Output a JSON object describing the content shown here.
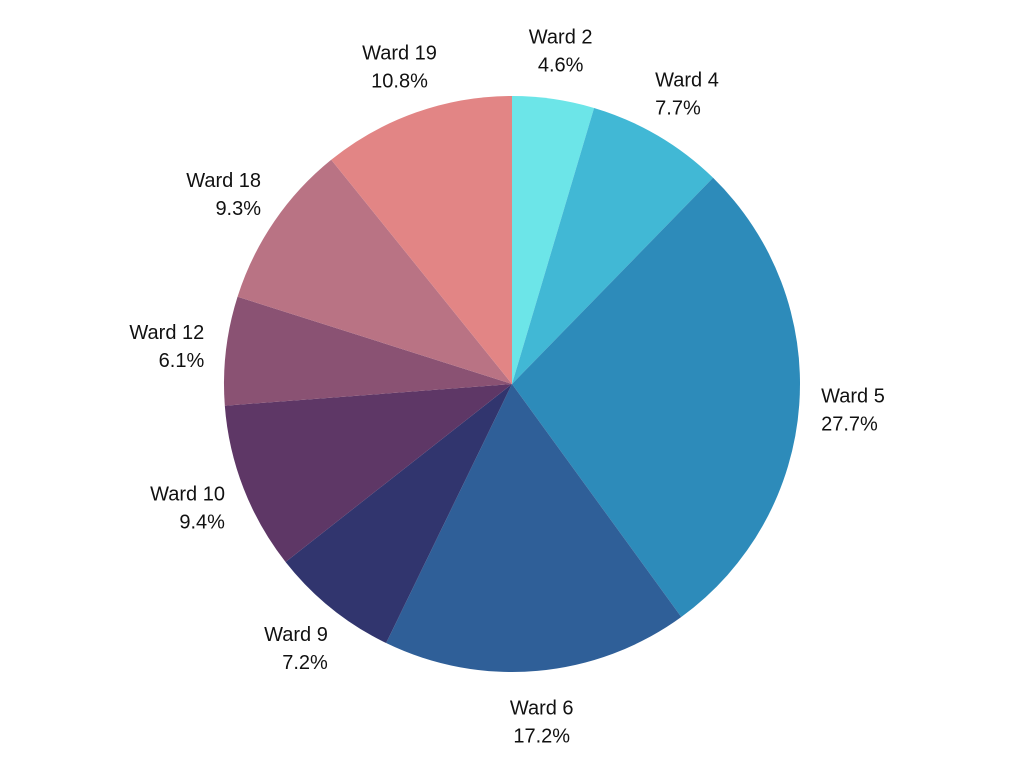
{
  "chart_data": {
    "type": "pie",
    "title": "",
    "legend": "none",
    "start_angle_deg": 0,
    "direction": "clockwise",
    "slices": [
      {
        "label": "Ward 2",
        "value": 4.6,
        "value_label": "4.6%",
        "color": "#6CE5E8"
      },
      {
        "label": "Ward 4",
        "value": 7.7,
        "value_label": "7.7%",
        "color": "#41B8D5"
      },
      {
        "label": "Ward 5",
        "value": 27.7,
        "value_label": "27.7%",
        "color": "#2D8BBA"
      },
      {
        "label": "Ward 6",
        "value": 17.2,
        "value_label": "17.2%",
        "color": "#2F5F98"
      },
      {
        "label": "Ward 9",
        "value": 7.2,
        "value_label": "7.2%",
        "color": "#31356E"
      },
      {
        "label": "Ward 10",
        "value": 9.4,
        "value_label": "9.4%",
        "color": "#5E3766"
      },
      {
        "label": "Ward 12",
        "value": 6.1,
        "value_label": "6.1%",
        "color": "#8A5273"
      },
      {
        "label": "Ward 18",
        "value": 9.3,
        "value_label": "9.3%",
        "color": "#B97384"
      },
      {
        "label": "Ward 19",
        "value": 10.8,
        "value_label": "10.8%",
        "color": "#E28585"
      }
    ]
  }
}
